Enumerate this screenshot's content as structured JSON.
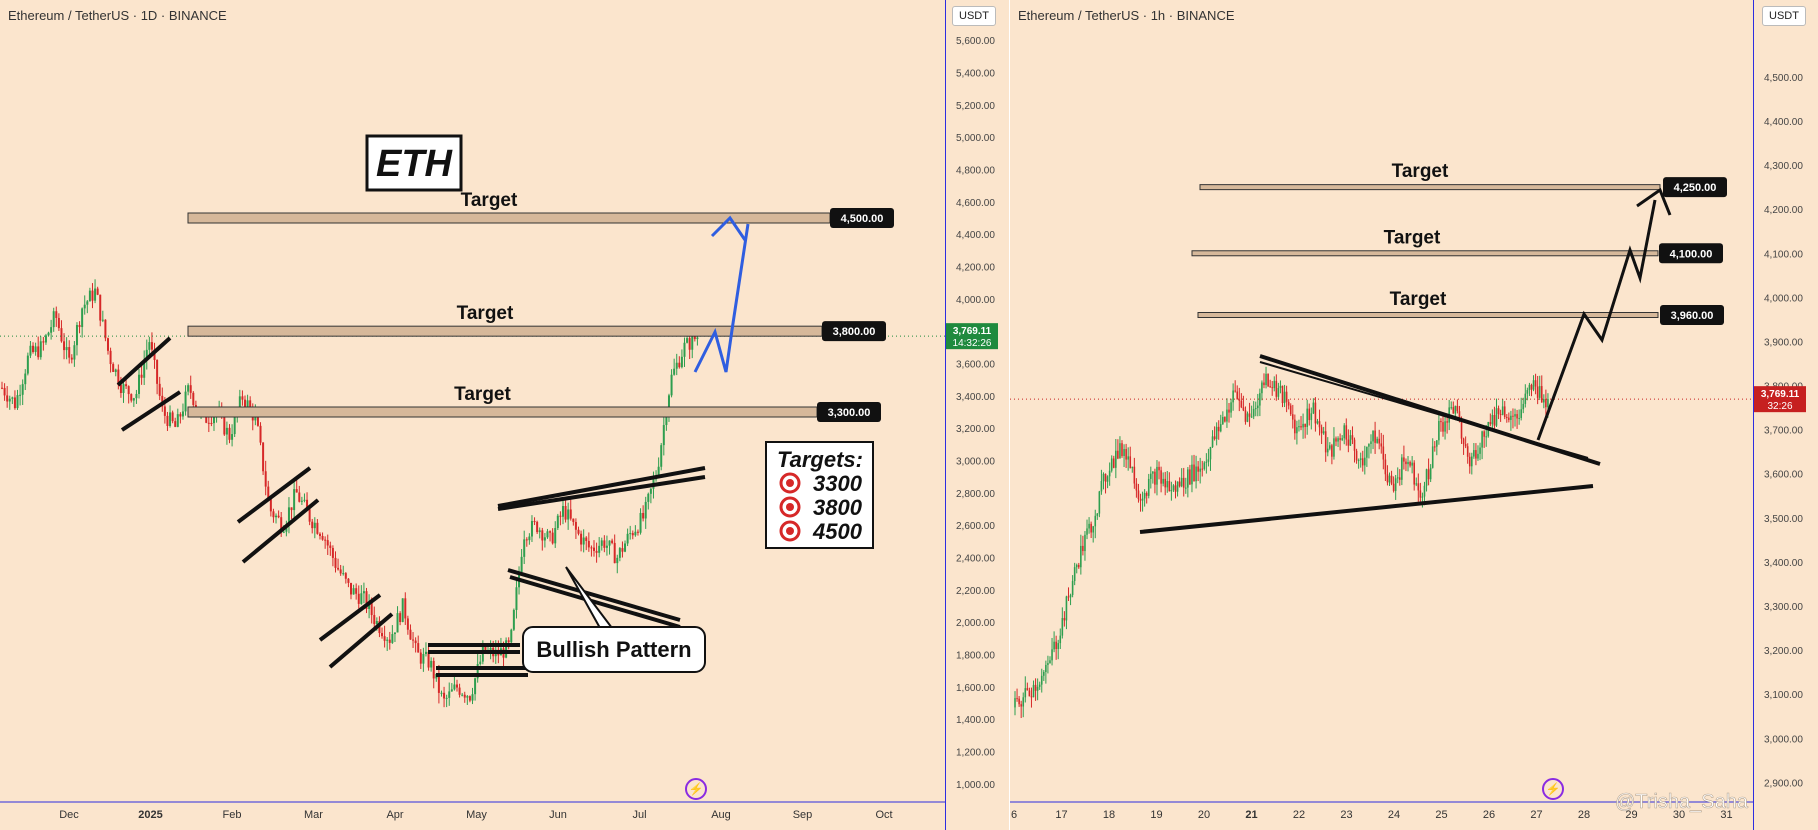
{
  "theme": {
    "bg": "#fbe5cd",
    "up": "#2e9e4f",
    "down": "#d62828",
    "axis_line": "#2d2de0"
  },
  "watermark": "@Trisha_Saha",
  "chart_data": [
    {
      "type": "candlestick",
      "symbol": "Ethereum / TetherUS · 1D · BINANCE",
      "currency": "USDT",
      "x_ticks": [
        "Dec",
        "2025",
        "Feb",
        "Mar",
        "Apr",
        "May",
        "Jun",
        "Jul",
        "Aug",
        "Sep",
        "Oct"
      ],
      "y_ticks": [
        "1,000.00",
        "1,200.00",
        "1,400.00",
        "1,600.00",
        "1,800.00",
        "2,000.00",
        "2,200.00",
        "2,400.00",
        "2,600.00",
        "2,800.00",
        "3,000.00",
        "3,200.00",
        "3,400.00",
        "3,600.00",
        "3,800.00",
        "4,000.00",
        "4,200.00",
        "4,400.00",
        "4,600.00",
        "4,800.00",
        "5,000.00",
        "5,200.00",
        "5,400.00",
        "5,600.00"
      ],
      "ylim": [
        900,
        5700
      ],
      "price_path": [
        3450,
        3350,
        3650,
        3700,
        3900,
        3600,
        3950,
        4050,
        3650,
        3450,
        3400,
        3750,
        3300,
        3200,
        3450,
        3250,
        3300,
        3150,
        3400,
        3250,
        2700,
        2600,
        2800,
        2650,
        2550,
        2350,
        2200,
        2150,
        2000,
        1900,
        2100,
        1800,
        1750,
        1500,
        1600,
        1550,
        1820,
        1800,
        1850,
        2550,
        2600,
        2500,
        2700,
        2550,
        2450,
        2500,
        2400,
        2550,
        2650,
        2950,
        3500,
        3700,
        3769
      ],
      "last_price": "3,769.11",
      "countdown": "14:32:26",
      "price_labels": [
        {
          "text": "4,500.00",
          "value": 4500
        },
        {
          "text": "3,800.00",
          "value": 3800
        },
        {
          "text": "3,300.00",
          "value": 3300
        }
      ],
      "annotations": {
        "title_box": "ETH",
        "target_label": "Target",
        "targets_box": {
          "heading": "Targets:",
          "items": [
            "3300",
            "3800",
            "4500"
          ]
        },
        "callout": "Bullish Pattern"
      }
    },
    {
      "type": "candlestick",
      "symbol": "Ethereum / TetherUS · 1h · BINANCE",
      "currency": "USDT",
      "x_ticks": [
        "6",
        "17",
        "18",
        "19",
        "20",
        "21",
        "22",
        "23",
        "24",
        "25",
        "26",
        "27",
        "28",
        "29",
        "30",
        "31"
      ],
      "y_ticks": [
        "2,900.00",
        "3,000.00",
        "3,100.00",
        "3,200.00",
        "3,300.00",
        "3,400.00",
        "3,500.00",
        "3,600.00",
        "3,700.00",
        "3,800.00",
        "3,900.00",
        "4,000.00",
        "4,100.00",
        "4,200.00",
        "4,300.00",
        "4,400.00",
        "4,500.00"
      ],
      "ylim": [
        2860,
        4620
      ],
      "price_path": [
        3070,
        3110,
        3150,
        3260,
        3400,
        3500,
        3620,
        3660,
        3550,
        3600,
        3560,
        3590,
        3620,
        3700,
        3780,
        3720,
        3820,
        3780,
        3700,
        3750,
        3640,
        3700,
        3630,
        3690,
        3570,
        3640,
        3550,
        3700,
        3750,
        3620,
        3700,
        3750,
        3720,
        3800,
        3769
      ],
      "last_price": "3,769.11",
      "countdown": "32:26",
      "price_labels": [
        {
          "text": "4,250.00",
          "value": 4250
        },
        {
          "text": "4,100.00",
          "value": 4100
        },
        {
          "text": "3,960.00",
          "value": 3960
        }
      ],
      "annotations": {
        "target_label": "Target"
      }
    }
  ]
}
